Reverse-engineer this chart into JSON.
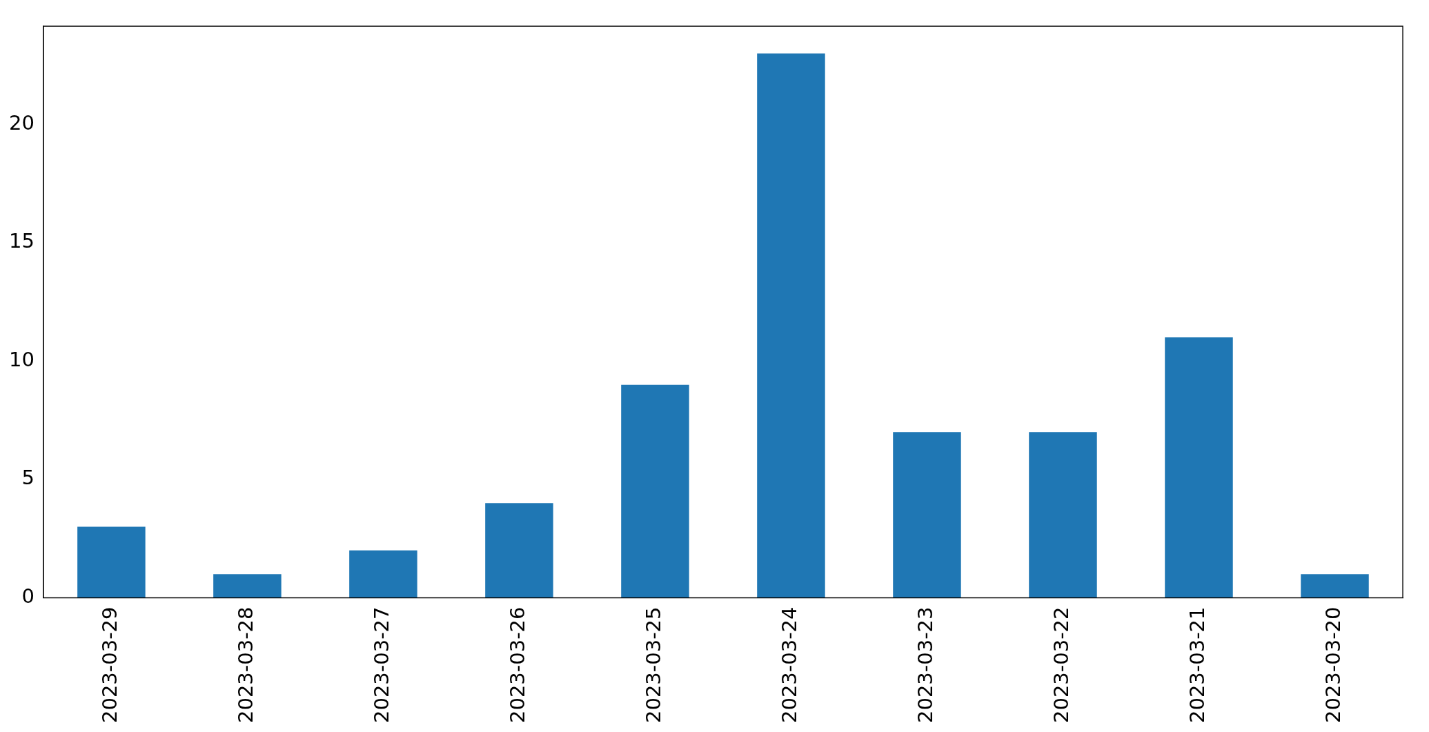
{
  "chart_data": {
    "type": "bar",
    "categories": [
      "2023-03-29",
      "2023-03-28",
      "2023-03-27",
      "2023-03-26",
      "2023-03-25",
      "2023-03-24",
      "2023-03-23",
      "2023-03-22",
      "2023-03-21",
      "2023-03-20"
    ],
    "values": [
      3,
      1,
      2,
      4,
      9,
      23,
      7,
      7,
      11,
      1
    ],
    "color": "#1f77b4",
    "ylim": [
      0,
      24.15
    ],
    "yticks": [
      0,
      5,
      10,
      15,
      20
    ],
    "grid": false
  }
}
